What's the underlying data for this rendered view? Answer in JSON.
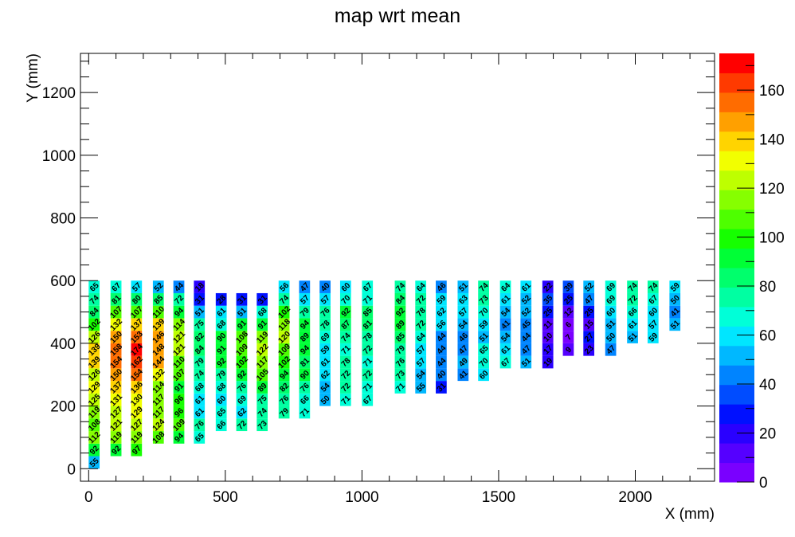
{
  "chart_data": {
    "type": "heatmap",
    "title": "map wrt mean",
    "xlabel": "X (mm)",
    "ylabel": "Y (mm)",
    "xlim": [
      -30,
      2290
    ],
    "ylim": [
      -40,
      1325
    ],
    "zlim": [
      0,
      175
    ],
    "x_ticks": [
      0,
      500,
      1000,
      1500,
      2000
    ],
    "y_ticks": [
      0,
      200,
      400,
      600,
      800,
      1000,
      1200
    ],
    "z_ticks": [
      0,
      20,
      40,
      60,
      80,
      100,
      120,
      140,
      160
    ],
    "cell_size_mm": [
      40,
      40
    ],
    "grid": false,
    "palette": [
      "#7a00ff",
      "#5500ff",
      "#2a00ff",
      "#0010ff",
      "#004cff",
      "#0084ff",
      "#00b8ff",
      "#00e6ff",
      "#00ffd8",
      "#00ffa2",
      "#00ff6c",
      "#00ff36",
      "#16ff00",
      "#4eff00",
      "#86ff00",
      "#beff00",
      "#f2ff00",
      "#ffd400",
      "#ffa000",
      "#ff6c00",
      "#ff3a00",
      "#ff0000"
    ],
    "columns": [
      {
        "x": 20,
        "y_start": 20,
        "values": [
          55,
          92,
          112,
          108,
          119,
          125,
          129,
          126,
          139,
          139,
          126,
          102,
          84,
          74,
          65
        ]
      },
      {
        "x": 100,
        "y_start": 60,
        "values": [
          92,
          119,
          121,
          127,
          131,
          137,
          150,
          154,
          158,
          150,
          132,
          107,
          81,
          67
        ]
      },
      {
        "x": 175,
        "y_start": 60,
        "values": [
          97,
          119,
          127,
          129,
          130,
          136,
          154,
          162,
          174,
          153,
          137,
          107,
          80,
          57
        ]
      },
      {
        "x": 255,
        "y_start": 100,
        "values": [
          108,
          124,
          117,
          117,
          114,
          132,
          144,
          148,
          146,
          139,
          110,
          85,
          52
        ]
      },
      {
        "x": 330,
        "y_start": 100,
        "values": [
          94,
          109,
          96,
          96,
          91,
          107,
          110,
          121,
          121,
          114,
          94,
          72,
          44
        ]
      },
      {
        "x": 405,
        "y_start": 100,
        "values": [
          65,
          76,
          61,
          61,
          68,
          74,
          79,
          84,
          82,
          75,
          51,
          31,
          18
        ]
      },
      {
        "x": 485,
        "y_start": 140,
        "values": [
          66,
          65,
          60,
          68,
          79,
          92,
          91,
          90,
          68,
          61,
          28
        ]
      },
      {
        "x": 560,
        "y_start": 140,
        "values": [
          72,
          62,
          69,
          76,
          92,
          102,
          109,
          108,
          91,
          51,
          31
        ]
      },
      {
        "x": 635,
        "y_start": 140,
        "values": [
          73,
          74,
          75,
          89,
          105,
          117,
          122,
          119,
          91,
          68,
          31
        ]
      },
      {
        "x": 715,
        "y_start": 180,
        "values": [
          79,
          76,
          82,
          94,
          102,
          109,
          120,
          118,
          102,
          74,
          56
        ]
      },
      {
        "x": 790,
        "y_start": 180,
        "values": [
          71,
          66,
          76,
          90,
          81,
          94,
          89,
          94,
          79,
          57,
          47
        ]
      },
      {
        "x": 865,
        "y_start": 220,
        "values": [
          50,
          54,
          62,
          61,
          59,
          69,
          78,
          76,
          57,
          40
        ]
      },
      {
        "x": 940,
        "y_start": 220,
        "values": [
          71,
          72,
          72,
          78,
          71,
          74,
          87,
          92,
          70,
          60
        ]
      },
      {
        "x": 1020,
        "y_start": 220,
        "values": [
          67,
          71,
          72,
          71,
          72,
          78,
          81,
          85,
          71,
          67
        ]
      },
      {
        "x": 1140,
        "y_start": 260,
        "values": [
          71,
          73,
          76,
          79,
          85,
          89,
          92,
          84,
          74
        ]
      },
      {
        "x": 1215,
        "y_start": 260,
        "values": [
          55,
          54,
          57,
          57,
          64,
          72,
          78,
          72,
          64
        ]
      },
      {
        "x": 1290,
        "y_start": 260,
        "values": [
          31,
          40,
          44,
          44,
          44,
          56,
          62,
          59,
          46
        ]
      },
      {
        "x": 1370,
        "y_start": 300,
        "values": [
          41,
          49,
          47,
          46,
          54,
          57,
          63,
          51
        ]
      },
      {
        "x": 1445,
        "y_start": 300,
        "values": [
          60,
          70,
          65,
          51,
          59,
          70,
          73,
          74
        ]
      },
      {
        "x": 1525,
        "y_start": 340,
        "values": [
          67,
          61,
          54,
          41,
          54,
          61,
          64
        ]
      },
      {
        "x": 1600,
        "y_start": 340,
        "values": [
          51,
          47,
          44,
          45,
          52,
          52,
          61
        ]
      },
      {
        "x": 1680,
        "y_start": 340,
        "values": [
          19,
          17,
          10,
          11,
          25,
          35,
          22
        ]
      },
      {
        "x": 1755,
        "y_start": 380,
        "values": [
          9,
          7,
          6,
          12,
          25,
          39
        ]
      },
      {
        "x": 1830,
        "y_start": 380,
        "values": [
          23,
          27,
          15,
          25,
          47,
          52
        ]
      },
      {
        "x": 1910,
        "y_start": 380,
        "values": [
          47,
          50,
          51,
          60,
          69,
          69
        ]
      },
      {
        "x": 1990,
        "y_start": 420,
        "values": [
          51,
          61,
          66,
          72,
          74
        ]
      },
      {
        "x": 2065,
        "y_start": 420,
        "values": [
          59,
          57,
          60,
          67,
          74
        ]
      },
      {
        "x": 2145,
        "y_start": 460,
        "values": [
          51,
          41,
          50,
          59
        ]
      }
    ]
  }
}
